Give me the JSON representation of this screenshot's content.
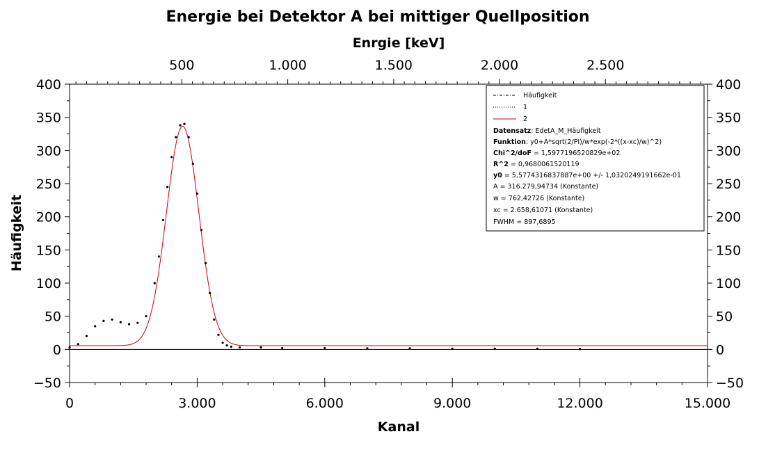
{
  "chart_data": {
    "type": "scatter",
    "title": "Energie bei Detektor A bei mittiger Quellposition",
    "xlabel": "Kanal",
    "ylabel": "Häufigkeit",
    "x2label": "Enrgie [keV]",
    "xlim": [
      0,
      15000
    ],
    "ylim": [
      -50,
      400
    ],
    "x_ticks": [
      0,
      3000,
      6000,
      9000,
      12000,
      15000
    ],
    "x_tick_labels": [
      "0",
      "3.000",
      "6.000",
      "9.000",
      "12.000",
      "15.000"
    ],
    "y_ticks": [
      -50,
      0,
      50,
      100,
      150,
      200,
      250,
      300,
      350,
      400
    ],
    "y_tick_labels": [
      "−50",
      "0",
      "50",
      "100",
      "150",
      "200",
      "250",
      "300",
      "350",
      "400"
    ],
    "x2_ticks_kanal": [
      2640,
      5130,
      7620,
      10110,
      12600
    ],
    "x2_tick_labels": [
      "500",
      "1.000",
      "1.500",
      "2.000",
      "2.500"
    ],
    "series": [
      {
        "name": "Häufigkeit",
        "style": "scatter",
        "color": "#000000",
        "x": [
          0,
          200,
          400,
          600,
          800,
          1000,
          1200,
          1400,
          1600,
          1800,
          2000,
          2100,
          2200,
          2300,
          2400,
          2500,
          2600,
          2700,
          2800,
          2900,
          3000,
          3100,
          3200,
          3300,
          3400,
          3500,
          3600,
          3700,
          3800,
          4000,
          4500,
          5000,
          6000,
          7000,
          8000,
          9000,
          10000,
          11000,
          12000
        ],
        "y": [
          3,
          8,
          20,
          35,
          43,
          45,
          41,
          38,
          40,
          50,
          100,
          140,
          195,
          245,
          290,
          320,
          338,
          340,
          320,
          280,
          235,
          180,
          130,
          85,
          45,
          22,
          10,
          6,
          4,
          3,
          3,
          2,
          2,
          1.5,
          1.5,
          1,
          1,
          1,
          0.5
        ]
      },
      {
        "name": "2",
        "style": "line",
        "color": "#cc0000",
        "model": "gauss",
        "y0": 5.5774316837887,
        "A": 316279.94734,
        "w": 762.42726,
        "xc": 2658.61071
      }
    ],
    "legend": {
      "position": "top-right",
      "entries": [
        {
          "label": "Häufigkeit",
          "line": "dashdot",
          "color": "#000000"
        },
        {
          "label": "1",
          "line": "dotted",
          "color": "#000000"
        },
        {
          "label": "2",
          "line": "solid",
          "color": "#cc0000"
        }
      ],
      "stats": [
        {
          "key": "Datensatz",
          "value": ": EdetA_M_Häufigkeit"
        },
        {
          "key": "Funktion",
          "value": ": y0+A*sqrt(2/PI)/w*exp(-2*((x-xc)/w)^2)"
        },
        {
          "key": "Chi^2/doF",
          "value": " = 1,5977196520829e+02"
        },
        {
          "key": "R^2",
          "value": " = 0,9680061520119"
        },
        {
          "key": "y0",
          "value": " = 5,5774316837887e+00 +/- 1,0320249191662e-01"
        },
        {
          "key": "",
          "value": "A = 316.279,94734 (Konstante)"
        },
        {
          "key": "",
          "value": "w = 762,42726 (Konstante)"
        },
        {
          "key": "",
          "value": "xc = 2.658,61071 (Konstante)"
        },
        {
          "key": "",
          "value": "FWHM = 897,6895"
        }
      ]
    },
    "grid": false
  }
}
